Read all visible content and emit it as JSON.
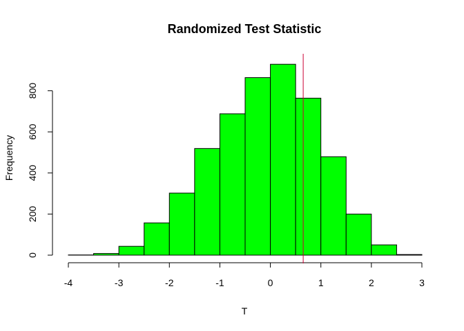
{
  "chart_data": {
    "type": "bar",
    "title": "Randomized Test Statistic",
    "xlabel": "T",
    "ylabel": "Frequency",
    "bins": [
      {
        "start": -4.0,
        "end": -3.5,
        "count": 1
      },
      {
        "start": -3.5,
        "end": -3.0,
        "count": 8
      },
      {
        "start": -3.0,
        "end": -2.5,
        "count": 43
      },
      {
        "start": -2.5,
        "end": -2.0,
        "count": 157
      },
      {
        "start": -2.0,
        "end": -1.5,
        "count": 302
      },
      {
        "start": -1.5,
        "end": -1.0,
        "count": 519
      },
      {
        "start": -1.0,
        "end": -0.5,
        "count": 688
      },
      {
        "start": -0.5,
        "end": 0.0,
        "count": 864
      },
      {
        "start": 0.0,
        "end": 0.5,
        "count": 929
      },
      {
        "start": 0.5,
        "end": 1.0,
        "count": 764
      },
      {
        "start": 1.0,
        "end": 1.5,
        "count": 479
      },
      {
        "start": 1.5,
        "end": 2.0,
        "count": 200
      },
      {
        "start": 2.0,
        "end": 2.5,
        "count": 50
      },
      {
        "start": 2.5,
        "end": 3.0,
        "count": 3
      }
    ],
    "xlim": [
      -4,
      3
    ],
    "ylim": [
      0,
      980
    ],
    "xticks": [
      "-4",
      "-3",
      "-2",
      "-1",
      "0",
      "1",
      "2",
      "3"
    ],
    "yticks": [
      "0",
      "200",
      "400",
      "600",
      "800"
    ],
    "reference_line_x": 0.65,
    "bar_color": "#00ff00",
    "reference_line_color": "#cc0033",
    "grid": false
  }
}
